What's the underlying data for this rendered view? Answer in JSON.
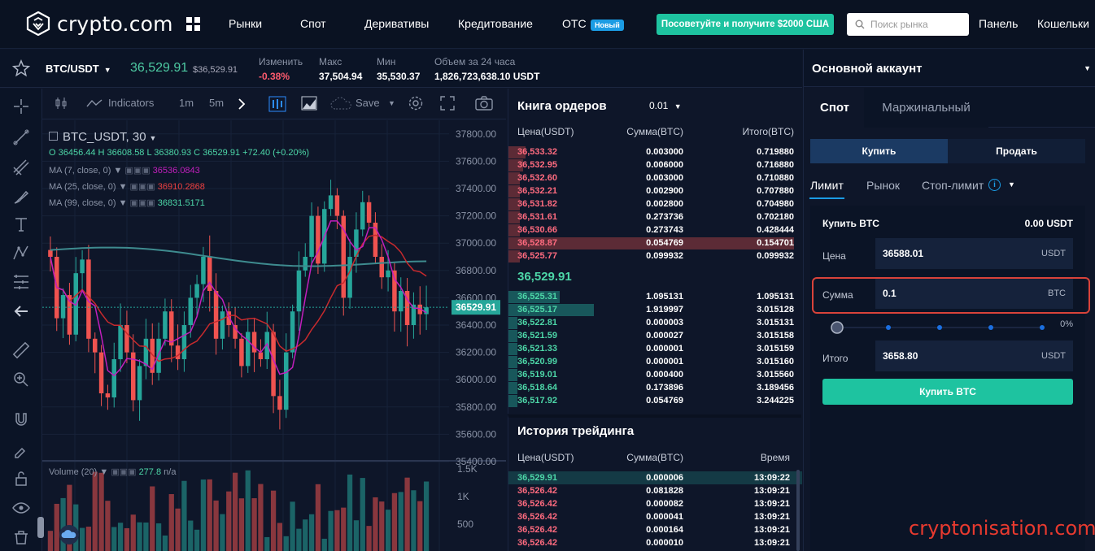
{
  "nav": {
    "logo_text": "crypto.com",
    "items": [
      "Рынки",
      "Спот",
      "Деривативы",
      "Кредитование",
      "OTC"
    ],
    "new_badge": "Новый",
    "promo": "Посоветуйте и получите $2000 США",
    "search_placeholder": "Поиск рынка",
    "panel": "Панель",
    "wallets": "Кошельки"
  },
  "ticker": {
    "pair": "BTC/USDT",
    "price": "36,529.91",
    "price_sub": "$36,529.91",
    "change_label": "Изменить",
    "change_value": "-0.38%",
    "high_label": "Макс",
    "high_value": "37,504.94",
    "low_label": "Мин",
    "low_value": "35,530.37",
    "volume_label": "Объем за 24 часа",
    "volume_value": "1,826,723,638.10 USDT"
  },
  "chart_toolbar": {
    "indicators": "Indicators",
    "interval_1": "1m",
    "interval_2": "5m",
    "save": "Save"
  },
  "chart_legend": {
    "symbol": "BTC_USDT, 30",
    "ohlc_text": "O 36456.44  H 36608.58  L 36380.93  C 36529.91  +72.40 (+0.20%)",
    "ma7_label": "MA (7, close, 0)",
    "ma7_value": "36536.0843",
    "ma25_label": "MA (25, close, 0)",
    "ma25_value": "36910.2868",
    "ma99_label": "MA (99, close, 0)",
    "ma99_value": "36831.5171",
    "volume_label": "Volume (20)",
    "volume_value": "277.8",
    "volume_na": "n/a"
  },
  "chart_data": {
    "type": "candlestick",
    "y_ticks": [
      "37800.00",
      "37600.00",
      "37400.00",
      "37200.00",
      "37000.00",
      "36800.00",
      "36600.00",
      "36400.00",
      "36200.00",
      "36000.00",
      "35800.00",
      "35600.00",
      "35400.00"
    ],
    "ylim": [
      35400,
      37900
    ],
    "last_price_label": "36529.91",
    "last_price": 36529.91,
    "volume_ticks": [
      "1.5K",
      "1K",
      "500"
    ],
    "closes": [
      36900,
      36450,
      36620,
      36330,
      36780,
      36880,
      36300,
      36200,
      35900,
      35870,
      36150,
      36400,
      36200,
      35850,
      36100,
      36300,
      36050,
      36300,
      36500,
      36250,
      36150,
      36400,
      36600,
      36700,
      36900,
      36650,
      36300,
      36500,
      36400,
      36300,
      36100,
      36350,
      36200,
      36150,
      36350,
      35880,
      35780,
      36200,
      36500,
      36800,
      36900,
      37200,
      36850,
      37250,
      37350,
      37200,
      36600,
      36900,
      37100,
      37300,
      37150,
      36900,
      36750,
      36800,
      36500,
      36650,
      36400,
      36550,
      36480,
      36530
    ],
    "colors": {
      "up": "#26a69a",
      "down": "#ef5350",
      "ma7": "#c21fbd",
      "ma25": "#c82a2d",
      "ma99": "#3e8b8f"
    }
  },
  "orderbook": {
    "title": "Книга ордеров",
    "precision": "0.01",
    "col_price": "Цена(USDT)",
    "col_amount": "Сумма(BTC)",
    "col_total": "Итого(BTC)",
    "asks": [
      {
        "price": "36,533.32",
        "amount": "0.003000",
        "total": "0.719880",
        "depth": 0.06
      },
      {
        "price": "36,532.95",
        "amount": "0.006000",
        "total": "0.716880",
        "depth": 0.05
      },
      {
        "price": "36,532.60",
        "amount": "0.003000",
        "total": "0.710880",
        "depth": 0.04
      },
      {
        "price": "36,532.21",
        "amount": "0.002900",
        "total": "0.707880",
        "depth": 0.04
      },
      {
        "price": "36,531.82",
        "amount": "0.002800",
        "total": "0.704980",
        "depth": 0.04
      },
      {
        "price": "36,531.61",
        "amount": "0.273736",
        "total": "0.702180",
        "depth": 0.04
      },
      {
        "price": "36,530.66",
        "amount": "0.273743",
        "total": "0.428444",
        "depth": 0.04
      },
      {
        "price": "36,528.87",
        "amount": "0.054769",
        "total": "0.154701",
        "depth": 1.0
      },
      {
        "price": "36,525.77",
        "amount": "0.099932",
        "total": "0.099932",
        "depth": 0.04
      }
    ],
    "mid_price": "36,529.91",
    "bids": [
      {
        "price": "36,525.31",
        "amount": "1.095131",
        "total": "1.095131",
        "depth": 0.18
      },
      {
        "price": "36,525.17",
        "amount": "1.919997",
        "total": "3.015128",
        "depth": 0.3
      },
      {
        "price": "36,522.81",
        "amount": "0.000003",
        "total": "3.015131",
        "depth": 0.03
      },
      {
        "price": "36,521.59",
        "amount": "0.000027",
        "total": "3.015158",
        "depth": 0.03
      },
      {
        "price": "36,521.33",
        "amount": "0.000001",
        "total": "3.015159",
        "depth": 0.03
      },
      {
        "price": "36,520.99",
        "amount": "0.000001",
        "total": "3.015160",
        "depth": 0.03
      },
      {
        "price": "36,519.01",
        "amount": "0.000400",
        "total": "3.015560",
        "depth": 0.03
      },
      {
        "price": "36,518.64",
        "amount": "0.173896",
        "total": "3.189456",
        "depth": 0.03
      },
      {
        "price": "36,517.92",
        "amount": "0.054769",
        "total": "3.244225",
        "depth": 0.03
      }
    ]
  },
  "trade_history": {
    "title": "История трейдинга",
    "col_price": "Цена(USDT)",
    "col_amount": "Сумма(BTC)",
    "col_time": "Время",
    "rows": [
      {
        "price": "36,529.91",
        "amount": "0.000006",
        "time": "13:09:22",
        "side": "buy"
      },
      {
        "price": "36,526.42",
        "amount": "0.081828",
        "time": "13:09:21",
        "side": "sell"
      },
      {
        "price": "36,526.42",
        "amount": "0.000082",
        "time": "13:09:21",
        "side": "sell"
      },
      {
        "price": "36,526.42",
        "amount": "0.000041",
        "time": "13:09:21",
        "side": "sell"
      },
      {
        "price": "36,526.42",
        "amount": "0.000164",
        "time": "13:09:21",
        "side": "sell"
      },
      {
        "price": "36,526.42",
        "amount": "0.000010",
        "time": "13:09:21",
        "side": "sell"
      }
    ]
  },
  "trade_panel": {
    "account": "Основной аккаунт",
    "tab_spot": "Спот",
    "tab_margin": "Маржинальный",
    "buy": "Купить",
    "sell": "Продать",
    "type_limit": "Лимит",
    "type_market": "Рынок",
    "type_stop": "Стоп-лимит",
    "info_glyph": "i",
    "buy_label": "Купить BTC",
    "available": "0.00 USDT",
    "price_label": "Цена",
    "price_value": "36588.01",
    "price_unit": "USDT",
    "amount_label": "Сумма",
    "amount_value": "0.1",
    "amount_unit": "BTC",
    "slider_percent": "0%",
    "slider_value": 0,
    "total_label": "Итого",
    "total_value": "3658.80",
    "total_unit": "USDT",
    "submit": "Купить BTC"
  },
  "watermark": "cryptonisation.com"
}
